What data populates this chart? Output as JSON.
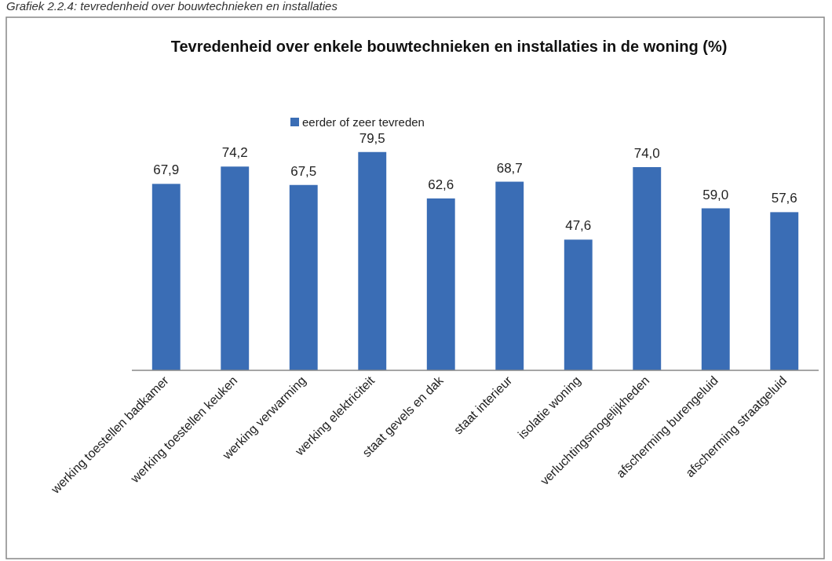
{
  "chart_data": {
    "type": "bar",
    "title": "Tevredenheid over enkele bouwtechnieken en installaties in de woning (%)",
    "annotations": [
      "Grafiek 2.2.4: tevredenheid over bouwtechnieken en installaties"
    ],
    "categories": [
      "werking toestellen badkamer",
      "werking toestellen keuken",
      "werking verwarming",
      "werking elektriciteit",
      "staat gevels en dak",
      "staat interieur",
      "isolatie woning",
      "verluchtingsmogelijkheden",
      "afscherming burengeluid",
      "afscherming straatgeluid"
    ],
    "series": [
      {
        "name": "eerder of zeer tevreden",
        "color": "#3a6db5",
        "values": [
          67.9,
          74.2,
          67.5,
          79.5,
          62.6,
          68.7,
          47.6,
          74.0,
          59.0,
          57.6
        ],
        "value_labels": [
          "67,9",
          "74,2",
          "67,5",
          "79,5",
          "62,6",
          "68,7",
          "47,6",
          "74,0",
          "59,0",
          "57,6"
        ]
      }
    ],
    "legend": "top",
    "grid": false
  }
}
